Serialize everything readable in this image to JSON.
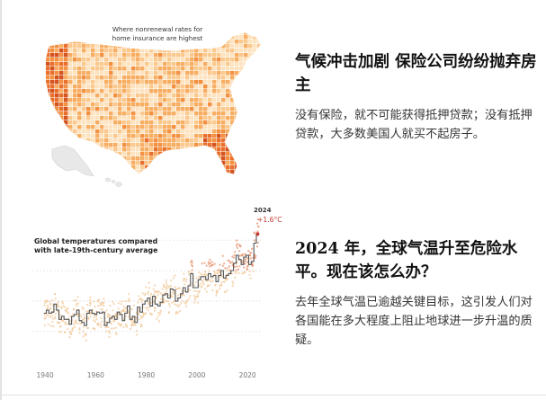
{
  "stories": [
    {
      "headline": "气候冲击加剧 保险公司纷纷抛弃房主",
      "summary": "没有保险，就不可能获得抵押贷款；没有抵押贷款，大多数美国人就买不起房子。",
      "image": {
        "caption": "Where nonrenewal rates for home insurance are highest"
      }
    },
    {
      "headline": "2024 年，全球气温升至危险水平。现在该怎么办？",
      "summary": "去年全球气温已逾越关键目标，这引发人们对各国能在多大程度上阻止地球进一步升温的质疑。",
      "image": {
        "chart_title": "Global temperatures compared with late-19th-century average",
        "year_callout": "2024",
        "value_callout": "+1.6°C"
      }
    }
  ],
  "chart_data": {
    "type": "line",
    "title": "Global temperatures compared with late-19th-century average",
    "x_ticks": [
      "1940",
      "1960",
      "1980",
      "2000",
      "2020"
    ],
    "xlim": [
      1935,
      2026
    ],
    "ylim": [
      -0.4,
      1.9
    ],
    "x": [
      1940,
      1941,
      1942,
      1943,
      1944,
      1945,
      1946,
      1947,
      1948,
      1949,
      1950,
      1951,
      1952,
      1953,
      1954,
      1955,
      1956,
      1957,
      1958,
      1959,
      1960,
      1961,
      1962,
      1963,
      1964,
      1965,
      1966,
      1967,
      1968,
      1969,
      1970,
      1971,
      1972,
      1973,
      1974,
      1975,
      1976,
      1977,
      1978,
      1979,
      1980,
      1981,
      1982,
      1983,
      1984,
      1985,
      1986,
      1987,
      1988,
      1989,
      1990,
      1991,
      1992,
      1993,
      1994,
      1995,
      1996,
      1997,
      1998,
      1999,
      2000,
      2001,
      2002,
      2003,
      2004,
      2005,
      2006,
      2007,
      2008,
      2009,
      2010,
      2011,
      2012,
      2013,
      2014,
      2015,
      2016,
      2017,
      2018,
      2019,
      2020,
      2021,
      2022,
      2023,
      2024
    ],
    "values": [
      0.3,
      0.35,
      0.3,
      0.32,
      0.45,
      0.35,
      0.2,
      0.25,
      0.2,
      0.2,
      0.12,
      0.25,
      0.28,
      0.35,
      0.18,
      0.15,
      0.1,
      0.3,
      0.35,
      0.3,
      0.28,
      0.32,
      0.3,
      0.32,
      0.1,
      0.15,
      0.22,
      0.25,
      0.2,
      0.32,
      0.28,
      0.18,
      0.3,
      0.42,
      0.2,
      0.25,
      0.15,
      0.4,
      0.32,
      0.45,
      0.5,
      0.55,
      0.42,
      0.58,
      0.45,
      0.42,
      0.48,
      0.6,
      0.62,
      0.55,
      0.7,
      0.68,
      0.5,
      0.55,
      0.62,
      0.72,
      0.65,
      0.75,
      0.95,
      0.72,
      0.72,
      0.85,
      0.9,
      0.9,
      0.85,
      0.95,
      0.9,
      0.92,
      0.82,
      0.92,
      1.0,
      0.88,
      0.92,
      0.95,
      1.0,
      1.12,
      1.25,
      1.18,
      1.1,
      1.22,
      1.25,
      1.1,
      1.15,
      1.45,
      1.6
    ],
    "highlight": {
      "year": "2024",
      "label": "+1.6°C"
    }
  }
}
